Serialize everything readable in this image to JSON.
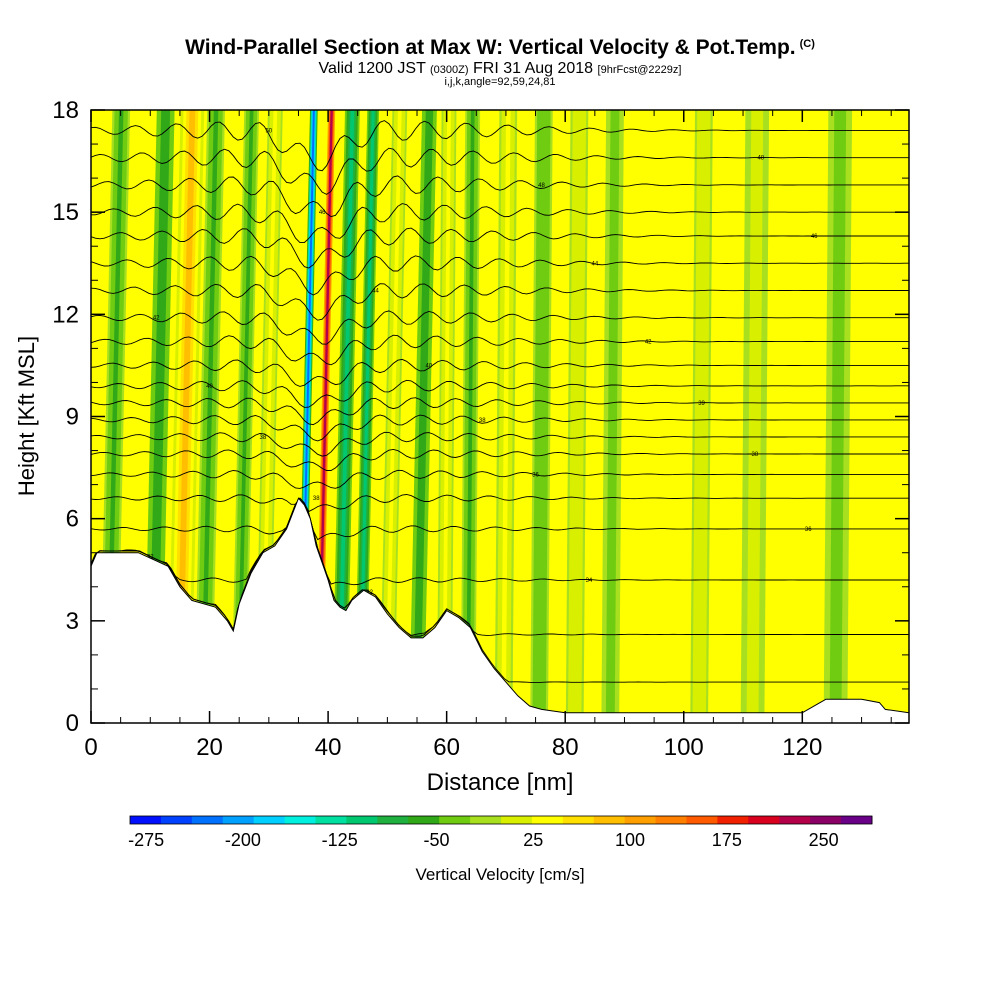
{
  "chart_data": {
    "type": "heatmap",
    "title": "Wind-Parallel Section at Max W: Vertical Velocity & Pot.Temp.",
    "title_mark": "(C)",
    "subtitle": {
      "valid_prefix": "Valid 1200 JST",
      "utc": "(0300Z)",
      "date": "FRI 31 Aug 2018",
      "forecast": "[9hrFcst@2229z]"
    },
    "subtitle2": "i,j,k,angle=92,59,24,81",
    "xlabel": "Distance [nm]",
    "ylabel": "Height [Kft MSL]",
    "xlim": [
      0,
      138
    ],
    "ylim": [
      0,
      18
    ],
    "x_ticks": [
      "0",
      "20",
      "40",
      "60",
      "80",
      "100",
      "120"
    ],
    "y_ticks": [
      "0",
      "3",
      "6",
      "9",
      "12",
      "15",
      "18"
    ],
    "colorbar": {
      "label": "Vertical Velocity [cm/s]",
      "tick_labels": [
        "-275",
        "-200",
        "-125",
        "-50",
        "25",
        "100",
        "175",
        "250"
      ],
      "levels": [
        -287.5,
        -262.5,
        -237.5,
        -212.5,
        -187.5,
        -162.5,
        -137.5,
        -112.5,
        -87.5,
        -62.5,
        -37.5,
        -12.5,
        12.5,
        37.5,
        62.5,
        87.5,
        112.5,
        137.5,
        162.5,
        187.5,
        212.5,
        237.5,
        262.5,
        287.5
      ],
      "colors": [
        "#0010ff",
        "#0040ff",
        "#0070ff",
        "#00a0ff",
        "#00d0ff",
        "#00f0e0",
        "#00e0a0",
        "#00c870",
        "#20b040",
        "#30a818",
        "#70cc10",
        "#a8e020",
        "#d8f000",
        "#ffff00",
        "#ffe000",
        "#ffbf00",
        "#ff9f00",
        "#ff7f00",
        "#ff5a00",
        "#f02000",
        "#d8001e",
        "#b40048",
        "#8a0066",
        "#6a0088"
      ]
    },
    "velocity_bands": [
      {
        "x": 4,
        "w": 3,
        "w_cm_s": -40
      },
      {
        "x": 11.5,
        "w": 3,
        "w_cm_s": -60
      },
      {
        "x": 16,
        "w": 4,
        "w_cm_s": 110
      },
      {
        "x": 20,
        "w": 3,
        "w_cm_s": -45
      },
      {
        "x": 26,
        "w": 2.5,
        "w_cm_s": -40
      },
      {
        "x": 30,
        "w": 2.5,
        "w_cm_s": 40
      },
      {
        "x": 36.5,
        "w": 1.3,
        "w_cm_s": -230
      },
      {
        "x": 39.5,
        "w": 1.6,
        "w_cm_s": 240
      },
      {
        "x": 43,
        "w": 2.5,
        "w_cm_s": -90
      },
      {
        "x": 46.5,
        "w": 2,
        "w_cm_s": -110
      },
      {
        "x": 51,
        "w": 2.5,
        "w_cm_s": 45
      },
      {
        "x": 56,
        "w": 2.5,
        "w_cm_s": -55
      },
      {
        "x": 60,
        "w": 2.5,
        "w_cm_s": 45
      },
      {
        "x": 64,
        "w": 2.5,
        "w_cm_s": -45
      },
      {
        "x": 70,
        "w": 3,
        "w_cm_s": 40
      },
      {
        "x": 76,
        "w": 3,
        "w_cm_s": -35
      },
      {
        "x": 82,
        "w": 3,
        "w_cm_s": 30
      },
      {
        "x": 88,
        "w": 3,
        "w_cm_s": -25
      },
      {
        "x": 103,
        "w": 3,
        "w_cm_s": 25
      },
      {
        "x": 112,
        "w": 4,
        "w_cm_s": 20
      },
      {
        "x": 126,
        "w": 4,
        "w_cm_s": -20
      }
    ],
    "terrain_kft": {
      "x": [
        0,
        1,
        2,
        4,
        8,
        13,
        15,
        17,
        19,
        21,
        23,
        24,
        25,
        27,
        29,
        31,
        33,
        35,
        36,
        37,
        38,
        39,
        40,
        41,
        42,
        43,
        44,
        46,
        48,
        50,
        52,
        54,
        56,
        58,
        60,
        62,
        64,
        66,
        68,
        70,
        72,
        74,
        76,
        80,
        90,
        100,
        110,
        118,
        120,
        123,
        124,
        125,
        130,
        133,
        134,
        138
      ],
      "h": [
        4.6,
        5.0,
        5.0,
        5.0,
        5.0,
        4.6,
        4.0,
        3.6,
        3.5,
        3.4,
        3.0,
        2.7,
        3.5,
        4.4,
        5.0,
        5.2,
        5.7,
        6.6,
        6.4,
        6.0,
        5.2,
        4.7,
        4.2,
        3.6,
        3.4,
        3.3,
        3.6,
        3.9,
        3.7,
        3.2,
        2.8,
        2.5,
        2.5,
        2.8,
        3.3,
        3.1,
        2.8,
        2.1,
        1.6,
        1.2,
        0.8,
        0.5,
        0.4,
        0.3,
        0.3,
        0.3,
        0.3,
        0.3,
        0.3,
        0.6,
        0.7,
        0.7,
        0.7,
        0.6,
        0.4,
        0.3
      ]
    },
    "theta_contours": [
      {
        "base": 1.2,
        "label": "32"
      },
      {
        "base": 2.6,
        "label": "32"
      },
      {
        "base": 4.2,
        "label": "34"
      },
      {
        "base": 5.7,
        "label": "36"
      },
      {
        "base": 6.6,
        "label": "38"
      },
      {
        "base": 7.3,
        "label": "36"
      },
      {
        "base": 7.9,
        "label": "38"
      },
      {
        "base": 8.4,
        "label": "38"
      },
      {
        "base": 8.9,
        "label": "38"
      },
      {
        "base": 9.4,
        "label": "39"
      },
      {
        "base": 9.9,
        "label": "40"
      },
      {
        "base": 10.5,
        "label": "40"
      },
      {
        "base": 11.2,
        "label": "42"
      },
      {
        "base": 11.9,
        "label": "42"
      },
      {
        "base": 12.7,
        "label": "44"
      },
      {
        "base": 13.5,
        "label": "44"
      },
      {
        "base": 14.3,
        "label": "46"
      },
      {
        "base": 15.0,
        "label": "46"
      },
      {
        "base": 15.8,
        "label": "48"
      },
      {
        "base": 16.6,
        "label": "48"
      },
      {
        "base": 17.4,
        "label": "50"
      }
    ]
  }
}
